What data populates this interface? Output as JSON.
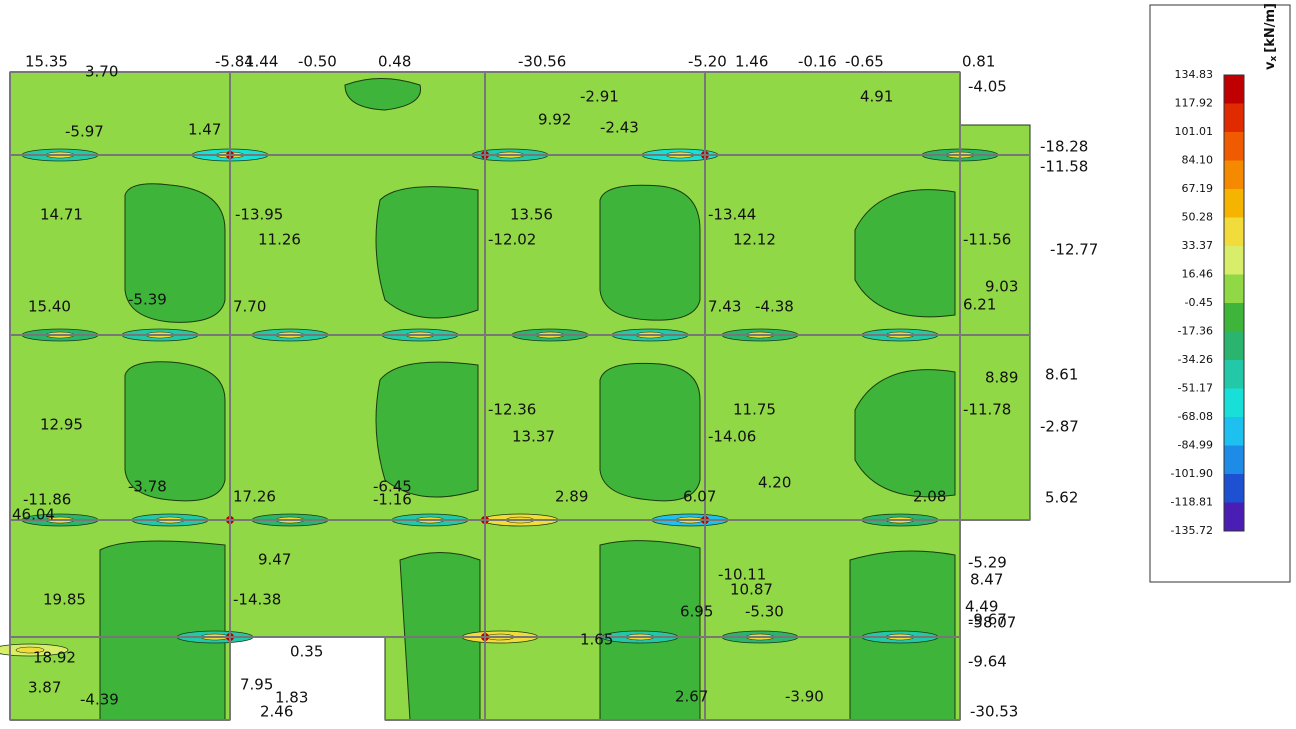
{
  "legend": {
    "title_symbol": "v",
    "title_subscript": "x",
    "title_unit": "[kN/m]",
    "levels": [
      "134.83",
      "117.92",
      "101.01",
      "84.10",
      "67.19",
      "50.28",
      "33.37",
      "16.46",
      "-0.45",
      "-17.36",
      "-34.26",
      "-51.17",
      "-68.08",
      "-84.99",
      "-101.90",
      "-118.81",
      "-135.72"
    ],
    "band_colors": [
      "#c00000",
      "#e02a00",
      "#f05a00",
      "#f58a00",
      "#f5b400",
      "#f2dc3c",
      "#d8ee6a",
      "#90d846",
      "#3fb43a",
      "#2ab46e",
      "#22c8a8",
      "#18e0d8",
      "#1ec0f0",
      "#1e8ce6",
      "#1e50d2",
      "#4a1eb4"
    ]
  },
  "plot_labels": [
    "15.35",
    "3.70",
    "-5.84",
    "1.44",
    "-0.50",
    "0.48",
    "-30.56",
    "-5.20",
    "1.46",
    "-0.16",
    "-0.65",
    "0.81",
    "-4.05",
    "-18.28",
    "-11.58",
    "-12.77",
    "9.03",
    "8.89",
    "8.61",
    "-2.87",
    "5.62",
    "-5.29",
    "8.47",
    "-9.67",
    "4.49",
    "-58.07",
    "-9.64",
    "-30.53",
    "14.71",
    "-13.95",
    "11.26",
    "13.56",
    "-12.02",
    "-13.44",
    "12.12",
    "-11.56",
    "12.95",
    "-12.36",
    "13.37",
    "11.75",
    "-14.06",
    "-11.78",
    "10.87",
    "-10.11",
    "9.92",
    "4.91",
    "-5.97",
    "1.47",
    "-4.39",
    "3.87",
    "18.92",
    "19.85",
    "-14.38",
    "7.95",
    "1.83",
    "2.46",
    "-3.90",
    "2.67",
    "6.95",
    "-5.30",
    "7.70",
    "7.43",
    "-4.38",
    "15.40",
    "-5.39",
    "6.21",
    "2.08",
    "6.07",
    "4.20",
    "17.26",
    "-6.45",
    "-11.86",
    "46.04",
    "-3.78",
    "2.89",
    "9.47",
    "-1.16",
    "-2.91",
    "-2.43",
    "1.65",
    "0.35"
  ]
}
